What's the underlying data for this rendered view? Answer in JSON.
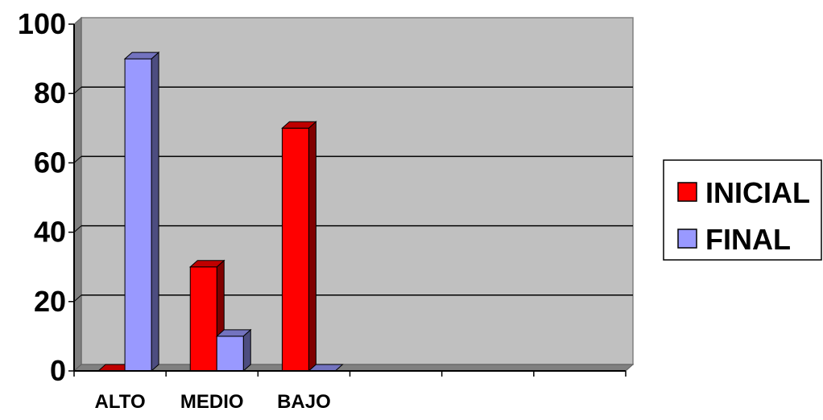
{
  "chart_data": {
    "type": "bar",
    "style": "3d-clustered-column",
    "categories": [
      "ALTO",
      "MEDIO",
      "BAJO",
      "",
      "",
      ""
    ],
    "series": [
      {
        "name": "INICIAL",
        "values": [
          0,
          30,
          70,
          null,
          null,
          null
        ],
        "color": "#FF0000"
      },
      {
        "name": "FINAL",
        "values": [
          90,
          10,
          0,
          null,
          null,
          null
        ],
        "color": "#9999FF"
      }
    ],
    "yticks": [
      "0",
      "20",
      "40",
      "60",
      "80",
      "100"
    ],
    "ylim": [
      0,
      100
    ],
    "grid": true,
    "plot_background": "#C0C0C0",
    "legend_position": "right",
    "title": "",
    "xlabel": "",
    "ylabel": ""
  }
}
